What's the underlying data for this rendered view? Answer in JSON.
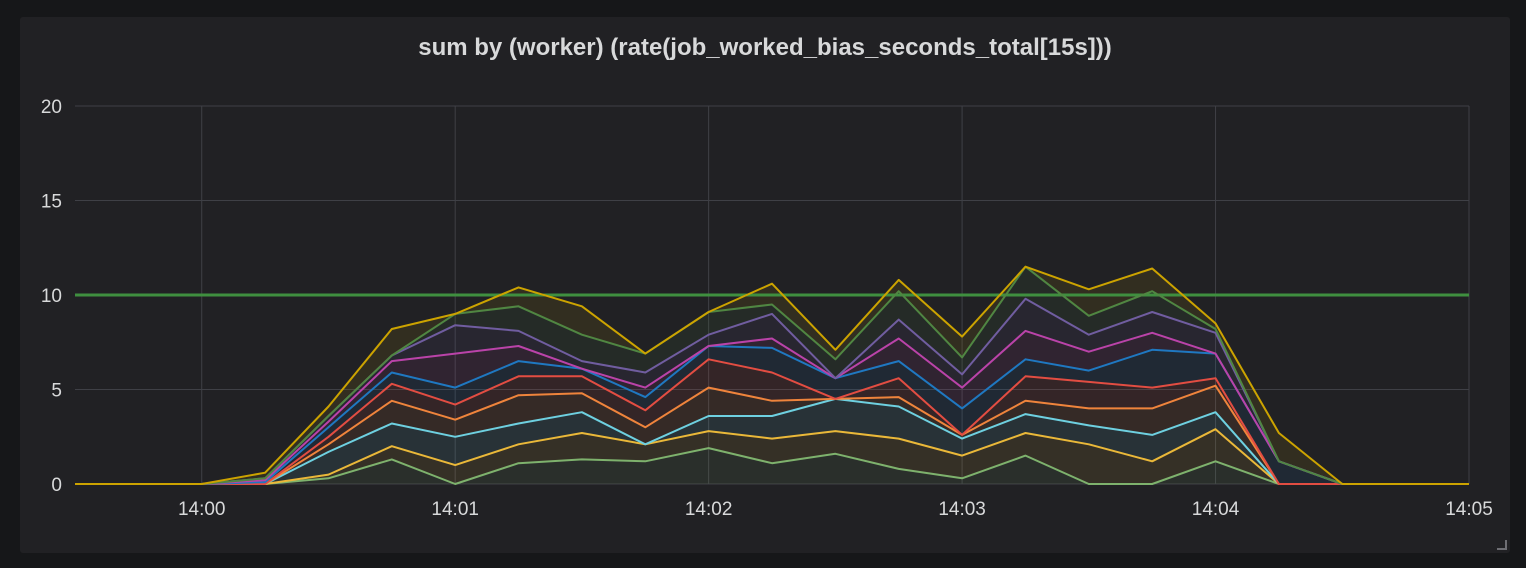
{
  "panel": {
    "title": "sum by (worker) (rate(job_worked_bias_seconds_total[15s]))"
  },
  "chart_data": {
    "type": "line",
    "title": "sum by (worker) (rate(job_worked_bias_seconds_total[15s]))",
    "xlabel": "",
    "ylabel": "",
    "x_tick_labels": [
      "14:00",
      "14:01",
      "14:02",
      "14:03",
      "14:04",
      "14:05"
    ],
    "x_tick_minutes": [
      0,
      1,
      2,
      3,
      4,
      5
    ],
    "xlim_minutes": [
      -0.5,
      5
    ],
    "y_ticks": [
      0,
      5,
      10,
      15,
      20
    ],
    "ylim": [
      0,
      20
    ],
    "grid": true,
    "stacked": true,
    "fill": true,
    "threshold": {
      "value": 10,
      "color": "#3f8f3f"
    },
    "x_minutes": [
      -0.5,
      0,
      0.25,
      0.5,
      0.75,
      1,
      1.25,
      1.5,
      1.75,
      2,
      2.25,
      2.5,
      2.75,
      3,
      3.25,
      3.5,
      3.75,
      4,
      4.25,
      4.5,
      4.75,
      5
    ],
    "series": [
      {
        "color": "#7eb26d",
        "values": [
          0,
          0,
          0,
          0.3,
          1.3,
          0,
          1.1,
          1.3,
          1.2,
          1.9,
          1.1,
          1.6,
          0.8,
          0.3,
          1.5,
          0,
          0,
          1.2,
          0,
          0,
          0,
          0
        ]
      },
      {
        "color": "#eab839",
        "values": [
          0,
          0,
          0,
          0.2,
          0.7,
          1.0,
          1.0,
          1.4,
          0.9,
          0.9,
          1.3,
          1.2,
          1.6,
          1.2,
          1.2,
          2.1,
          1.2,
          1.7,
          0,
          0,
          0,
          0
        ]
      },
      {
        "color": "#6ed0e0",
        "values": [
          0,
          0,
          0,
          1.2,
          1.2,
          1.5,
          1.1,
          1.1,
          0,
          0.8,
          1.2,
          1.7,
          1.7,
          0.9,
          1.0,
          1.0,
          1.4,
          0.9,
          0,
          0,
          0,
          0
        ]
      },
      {
        "color": "#ef843c",
        "values": [
          0,
          0,
          0,
          0.4,
          1.2,
          0.9,
          1.5,
          1.0,
          0.9,
          1.5,
          0.8,
          0,
          0.5,
          0.2,
          0.7,
          0.9,
          1.4,
          1.4,
          0,
          0,
          0,
          0
        ]
      },
      {
        "color": "#e24d42",
        "values": [
          0,
          0,
          0,
          0.4,
          0.9,
          0.8,
          1.0,
          0.9,
          0.9,
          1.5,
          1.5,
          0,
          1.0,
          0,
          1.3,
          1.4,
          1.1,
          0.4,
          0,
          0,
          0,
          0
        ]
      },
      {
        "color": "#1f78c1",
        "values": [
          0,
          0,
          0.1,
          0.5,
          0.6,
          0.9,
          0.8,
          0.4,
          0.7,
          0.7,
          1.3,
          1.1,
          0.9,
          1.4,
          0.9,
          0.6,
          2.0,
          1.3,
          1.2,
          0,
          0,
          0
        ]
      },
      {
        "color": "#ba43a9",
        "values": [
          0,
          0,
          0.1,
          0.3,
          0.6,
          1.8,
          0.8,
          0,
          0.5,
          0,
          0.5,
          0,
          1.2,
          1.1,
          1.5,
          1.0,
          0.9,
          0,
          0,
          0,
          0,
          0
        ]
      },
      {
        "color": "#705da0",
        "values": [
          0,
          0,
          0.1,
          0.3,
          0.3,
          1.5,
          0.8,
          0.4,
          0.8,
          0.6,
          1.3,
          0,
          1.0,
          0.7,
          1.7,
          0.9,
          1.1,
          1.1,
          0,
          0,
          0,
          0
        ]
      },
      {
        "color": "#508642",
        "values": [
          0,
          0,
          0,
          0,
          0,
          0.6,
          1.3,
          1.4,
          1.0,
          1.2,
          0.5,
          1.0,
          1.5,
          0.9,
          1.7,
          1.0,
          1.1,
          0.2,
          0,
          0,
          0,
          0
        ]
      },
      {
        "color": "#cca300",
        "values": [
          0,
          0,
          0.3,
          0.5,
          1.4,
          0,
          1.0,
          1.5,
          0,
          0,
          1.1,
          0.5,
          0.6,
          1.1,
          0,
          1.4,
          1.2,
          0.3,
          1.5,
          0,
          0,
          0
        ]
      }
    ]
  }
}
